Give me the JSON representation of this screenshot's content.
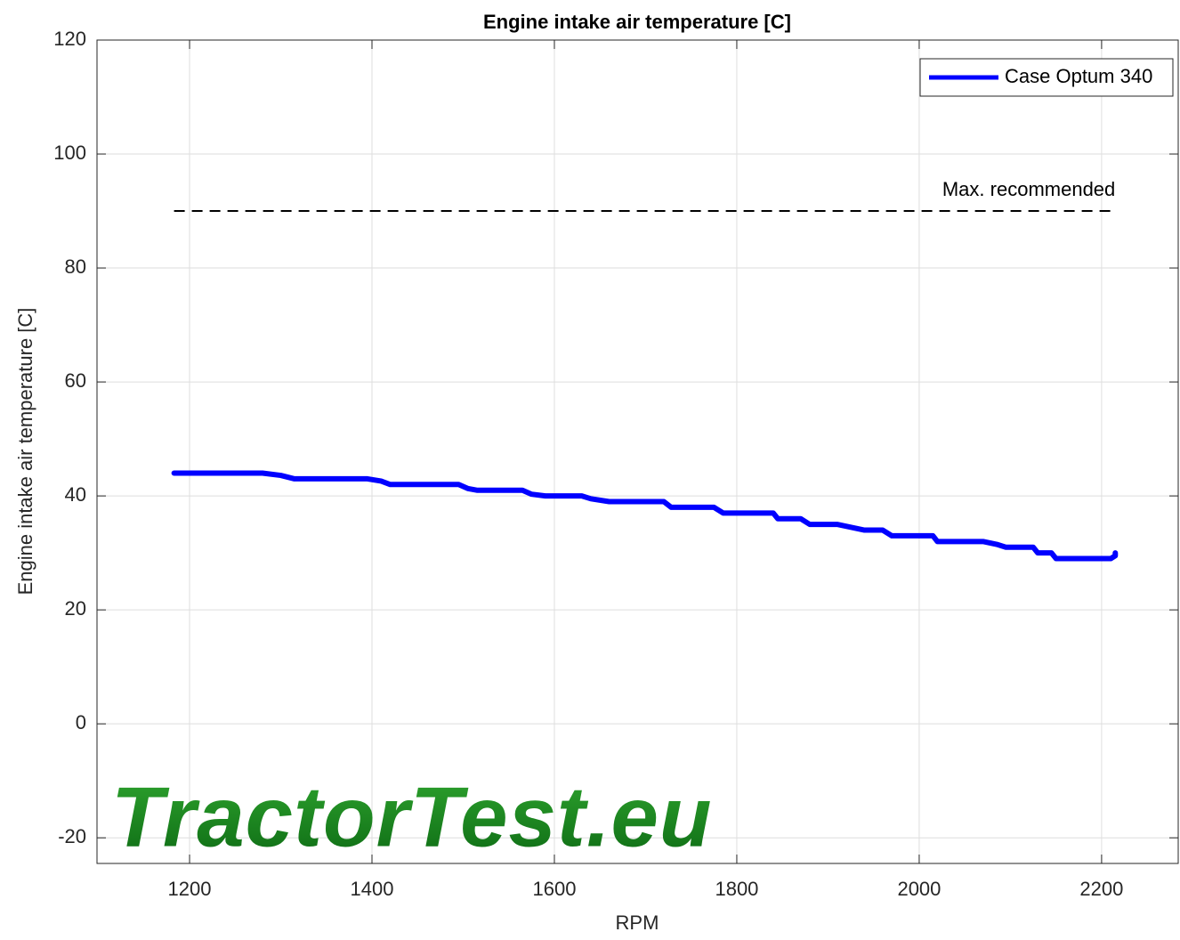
{
  "chart_data": {
    "type": "line",
    "title": "Engine intake air temperature [C]",
    "xlabel": "RPM",
    "ylabel": "Engine intake air temperature [C]",
    "watermark": "TractorTest.eu",
    "x": [
      1183,
      1280,
      1300,
      1315,
      1395,
      1410,
      1420,
      1495,
      1505,
      1515,
      1565,
      1575,
      1590,
      1630,
      1640,
      1660,
      1720,
      1728,
      1775,
      1785,
      1840,
      1845,
      1870,
      1880,
      1910,
      1925,
      1940,
      1960,
      1970,
      2015,
      2020,
      2070,
      2085,
      2095,
      2125,
      2130,
      2145,
      2150,
      2210,
      2215,
      2215
    ],
    "series": [
      {
        "name": "Case Optum 340",
        "color": "#0000ff",
        "values": [
          44,
          44,
          43.6,
          43,
          43,
          42.6,
          42,
          42,
          41.3,
          41,
          41,
          40.3,
          40,
          40,
          39.5,
          39,
          39,
          38,
          38,
          37,
          37,
          36,
          36,
          35,
          35,
          34.5,
          34,
          34,
          33,
          33,
          32,
          32,
          31.5,
          31,
          31,
          30,
          30,
          29,
          29,
          29.5,
          30
        ]
      }
    ],
    "reference_line": {
      "value": 90,
      "label": "Max. recommended",
      "x": [
        1183,
        2215
      ],
      "color": "#000000"
    },
    "xlim": [
      1098.5,
      2284
    ],
    "ylim": [
      -24.5,
      120
    ],
    "xticks": [
      1200,
      1400,
      1600,
      1800,
      2000,
      2200
    ],
    "yticks": [
      -20,
      0,
      20,
      40,
      60,
      80,
      100,
      120
    ],
    "grid": true,
    "legend": "northeast"
  }
}
